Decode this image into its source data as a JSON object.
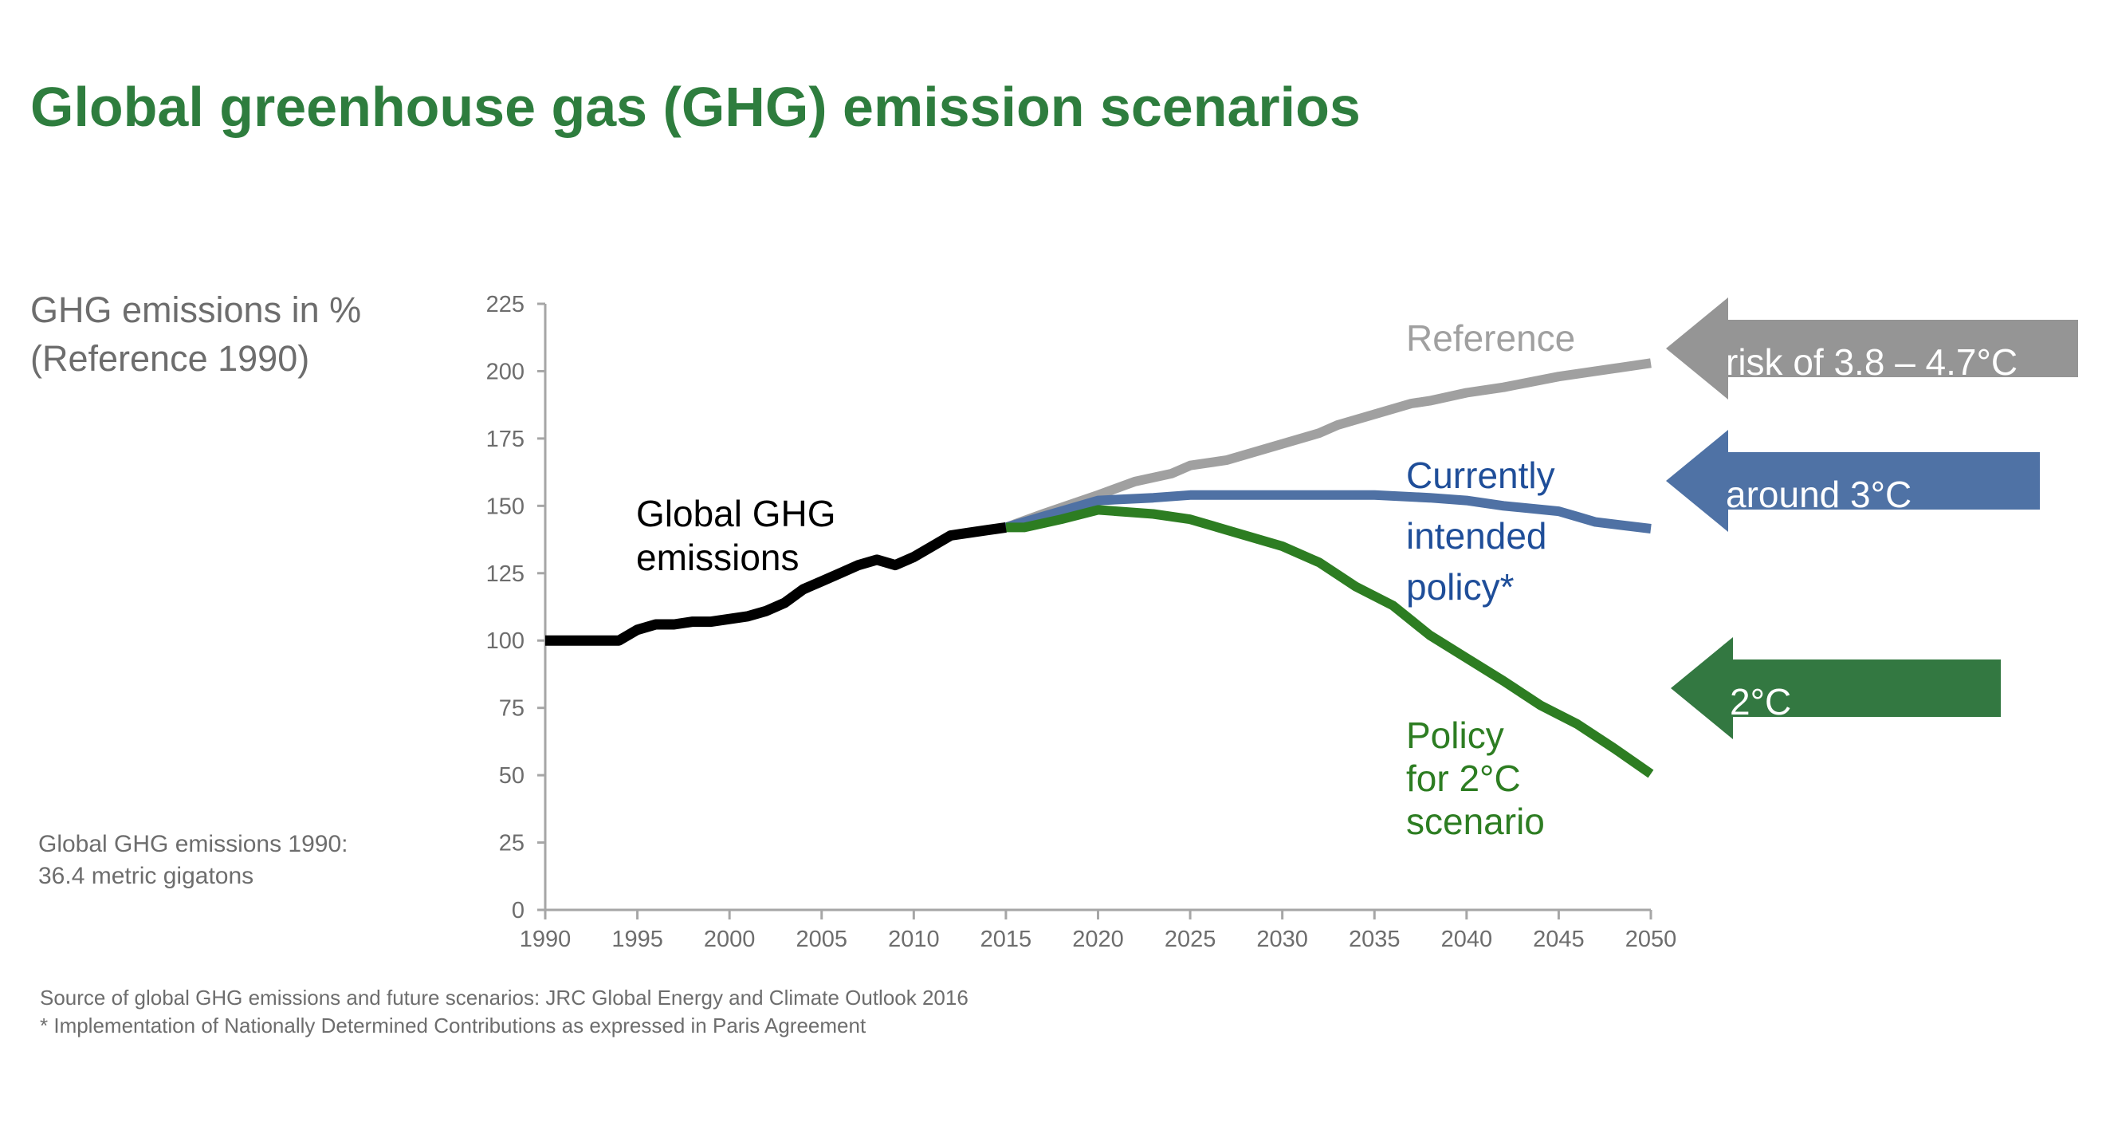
{
  "title": "Global greenhouse gas (GHG) emission scenarios",
  "y_axis_label": [
    "GHG emissions in %",
    "(Reference 1990)"
  ],
  "baseline_note": [
    "Global GHG emissions 1990:",
    "36.4 metric gigatons"
  ],
  "footnotes": [
    "Source of global GHG emissions and future scenarios: JRC Global Energy and Climate Outlook 2016",
    "* Implementation of Nationally Determined Contributions as expressed in Paris Agreement"
  ],
  "colors": {
    "title": "#2E7D3E",
    "axis": "#A6A6A6",
    "tick_text": "#6D6D6D",
    "historical": "#000000",
    "reference": "#A0A0A0",
    "current_policy": "#4F71A4",
    "current_policy_text": "#1F4E99",
    "two_degree": "#2D7D22",
    "arrow_reference": "#959595",
    "arrow_current": "#4F72A5",
    "arrow_two_degree": "#337841"
  },
  "chart_data": {
    "type": "line",
    "title": "Global greenhouse gas (GHG) emission scenarios",
    "xlabel": "",
    "ylabel": "GHG emissions in % (Reference 1990)",
    "xlim": [
      1990,
      2050
    ],
    "ylim": [
      0,
      225
    ],
    "x_ticks": [
      "1990",
      "1995",
      "2000",
      "2005",
      "2010",
      "2015",
      "2020",
      "2025",
      "2030",
      "2035",
      "2040",
      "2045",
      "2050"
    ],
    "y_ticks": [
      "0",
      "25",
      "50",
      "75",
      "100",
      "125",
      "150",
      "175",
      "200",
      "225"
    ],
    "grid": false,
    "legend": "none (inline labels)",
    "series": [
      {
        "name": "Global GHG emissions",
        "label": [
          "Global GHG",
          "emissions"
        ],
        "x": [
          1990,
          1991,
          1992,
          1993,
          1994,
          1995,
          1996,
          1997,
          1998,
          1999,
          2000,
          2001,
          2002,
          2003,
          2004,
          2005,
          2006,
          2007,
          2008,
          2009,
          2010,
          2011,
          2012,
          2013,
          2014,
          2015
        ],
        "y": [
          100,
          100,
          100,
          100,
          100,
          104,
          106,
          106,
          107,
          107,
          108,
          109,
          111,
          114,
          119,
          122,
          125,
          128,
          130,
          128,
          131,
          135,
          139,
          140,
          141,
          142
        ]
      },
      {
        "name": "Reference",
        "label": [
          "Reference"
        ],
        "annotation": "risk of 3.8 – 4.7°C",
        "x": [
          2015,
          2017,
          2020,
          2022,
          2024,
          2025,
          2027,
          2030,
          2032,
          2033,
          2035,
          2037,
          2038,
          2040,
          2042,
          2045,
          2046,
          2048,
          2050
        ],
        "y": [
          142,
          147,
          154,
          159,
          162,
          165,
          167,
          173,
          177,
          180,
          184,
          188,
          189,
          192,
          194,
          198,
          199,
          201,
          203
        ]
      },
      {
        "name": "Currently intended policy*",
        "label": [
          "Currently",
          "intended",
          "policy*"
        ],
        "annotation": "around 3°C",
        "x": [
          2015,
          2017,
          2020,
          2023,
          2025,
          2027,
          2030,
          2035,
          2038,
          2040,
          2042,
          2045,
          2046,
          2047,
          2050
        ],
        "y": [
          142,
          146,
          152,
          153,
          154,
          154,
          154,
          154,
          153,
          152,
          150,
          148,
          146,
          144,
          141.5
        ]
      },
      {
        "name": "Policy for 2°C scenario",
        "label": [
          "Policy",
          "for 2°C",
          "scenario"
        ],
        "annotation": "2°C",
        "x": [
          2015,
          2016,
          2018,
          2020,
          2021,
          2023,
          2025,
          2027,
          2030,
          2032,
          2034,
          2036,
          2038,
          2040,
          2042,
          2044,
          2046,
          2048,
          2050
        ],
        "y": [
          142,
          142,
          145,
          148.5,
          148,
          147,
          145,
          141,
          135,
          129,
          120,
          113,
          102,
          93.5,
          85,
          76,
          69,
          60,
          50.5
        ]
      }
    ]
  }
}
